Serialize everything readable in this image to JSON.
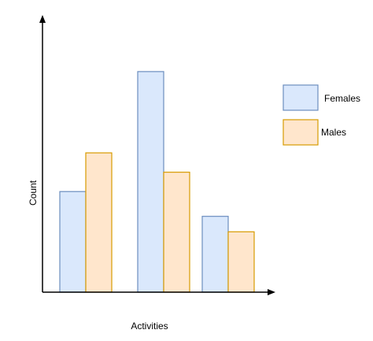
{
  "chart_data": {
    "type": "bar",
    "title": "",
    "xlabel": "Activities",
    "ylabel": "Count",
    "categories": [
      "",
      "",
      ""
    ],
    "series": [
      {
        "name": "Females",
        "values": [
          130,
          285,
          98
        ]
      },
      {
        "name": "Males",
        "values": [
          180,
          155,
          78
        ]
      }
    ],
    "ylim": [
      0,
      350
    ],
    "grid": false,
    "legend_position": "right",
    "colors": {
      "females_fill": "#dae8fc",
      "females_stroke": "#6c8ebf",
      "males_fill": "#ffe6cc",
      "males_stroke": "#d79b00",
      "axis": "#000000"
    }
  }
}
